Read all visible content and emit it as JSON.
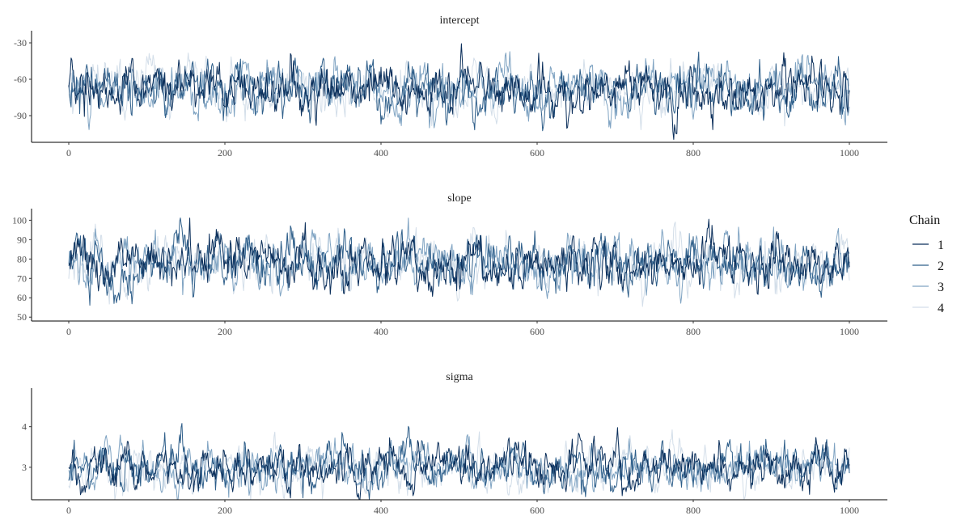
{
  "chart_data": [
    {
      "type": "line",
      "title": "intercept",
      "xlabel": "",
      "ylabel": "",
      "xlim": [
        0,
        1000
      ],
      "ylim": [
        -112,
        -20
      ],
      "xticks": [
        0,
        200,
        400,
        600,
        800,
        1000
      ],
      "yticks": [
        -30,
        -60,
        -90
      ],
      "mean": -68,
      "spread": 11,
      "n_draws": 1000,
      "grid": false,
      "series": [
        {
          "name": "1",
          "color": "#0b2f5b"
        },
        {
          "name": "2",
          "color": "#2f5f8a"
        },
        {
          "name": "3",
          "color": "#7fa3c2"
        },
        {
          "name": "4",
          "color": "#d3dee9"
        }
      ]
    },
    {
      "type": "line",
      "title": "slope",
      "xlabel": "",
      "ylabel": "",
      "xlim": [
        0,
        1000
      ],
      "ylim": [
        48,
        106
      ],
      "xticks": [
        0,
        200,
        400,
        600,
        800,
        1000
      ],
      "yticks": [
        50,
        60,
        70,
        80,
        90,
        100
      ],
      "mean": 78,
      "spread": 7,
      "n_draws": 1000,
      "grid": false,
      "series": [
        {
          "name": "1",
          "color": "#0b2f5b"
        },
        {
          "name": "2",
          "color": "#2f5f8a"
        },
        {
          "name": "3",
          "color": "#7fa3c2"
        },
        {
          "name": "4",
          "color": "#d3dee9"
        }
      ]
    },
    {
      "type": "line",
      "title": "sigma",
      "xlabel": "",
      "ylabel": "",
      "xlim": [
        0,
        1000
      ],
      "ylim": [
        2.2,
        4.95
      ],
      "xticks": [
        0,
        200,
        400,
        600,
        800,
        1000
      ],
      "yticks": [
        3,
        4
      ],
      "mean": 3.0,
      "spread": 0.28,
      "n_draws": 1000,
      "grid": false,
      "series": [
        {
          "name": "1",
          "color": "#0b2f5b"
        },
        {
          "name": "2",
          "color": "#2f5f8a"
        },
        {
          "name": "3",
          "color": "#7fa3c2"
        },
        {
          "name": "4",
          "color": "#d3dee9"
        }
      ]
    }
  ],
  "legend": {
    "title": "Chain",
    "placement": "right",
    "items": [
      {
        "label": "1",
        "color": "#0b2f5b"
      },
      {
        "label": "2",
        "color": "#2f5f8a"
      },
      {
        "label": "3",
        "color": "#7fa3c2"
      },
      {
        "label": "4",
        "color": "#d3dee9"
      }
    ]
  }
}
